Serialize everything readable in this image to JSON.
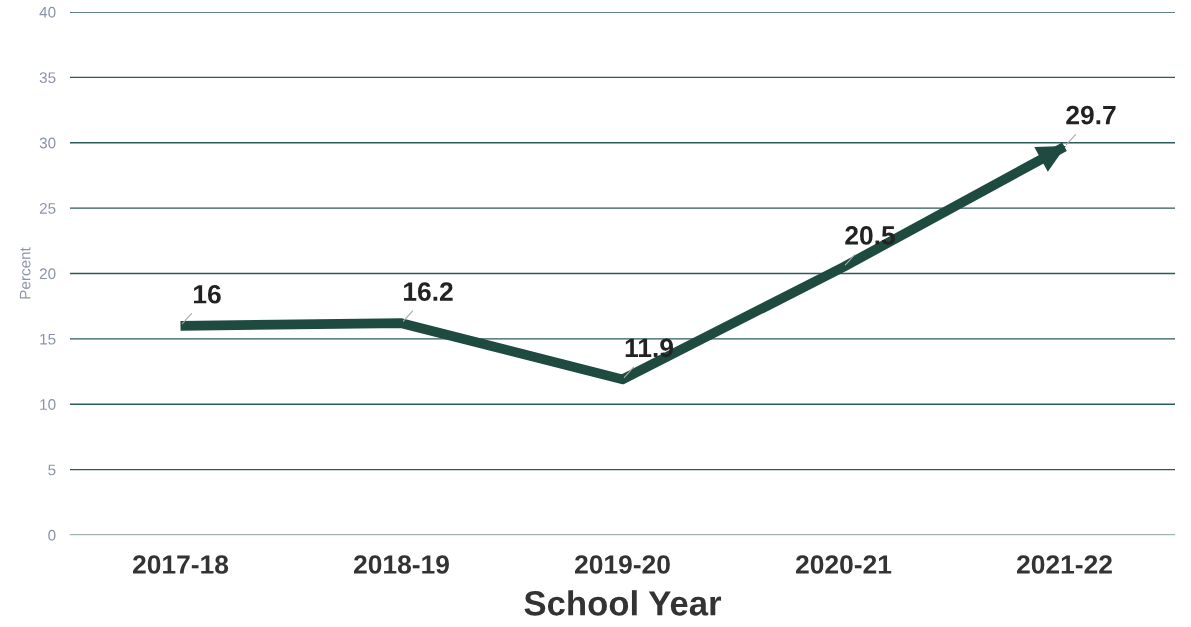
{
  "chart_data": {
    "type": "line",
    "xlabel": "School Year",
    "ylabel": "Percent",
    "categories": [
      "2017-18",
      "2018-19",
      "2019-20",
      "2020-21",
      "2021-22"
    ],
    "series": [
      {
        "color": "#1e4a40",
        "values": [
          16,
          16.2,
          11.9,
          20.5,
          29.7
        ]
      }
    ],
    "ylim": [
      0,
      40
    ],
    "yticks": [
      0,
      5,
      10,
      15,
      20,
      25,
      30,
      35,
      40
    ],
    "grid": "y",
    "data_labels": true,
    "legend": false,
    "marker": "none",
    "line_style": "solid"
  }
}
